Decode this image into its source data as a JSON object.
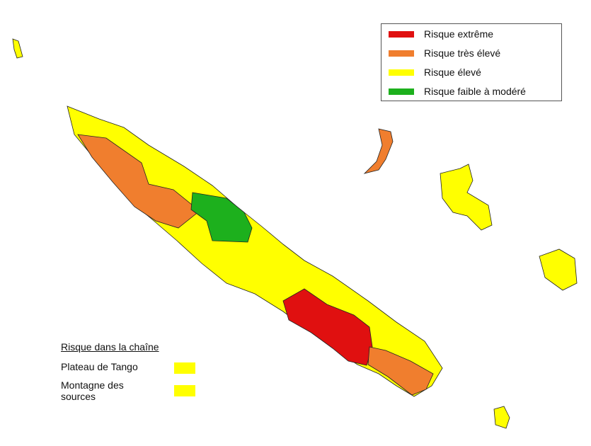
{
  "legend": {
    "items": [
      {
        "label": "Risque extrême",
        "color": "#e01010"
      },
      {
        "label": "Risque très élevé",
        "color": "#f07e2e"
      },
      {
        "label": "Risque élevé",
        "color": "#ffff00"
      },
      {
        "label": "Risque faible à modéré",
        "color": "#1db01d"
      }
    ]
  },
  "chain": {
    "title": "Risque dans la chaîne",
    "items": [
      {
        "label": "Plateau de Tango",
        "color": "#ffff00"
      },
      {
        "label": "Montagne des sources",
        "color": "#ffff00"
      }
    ]
  }
}
